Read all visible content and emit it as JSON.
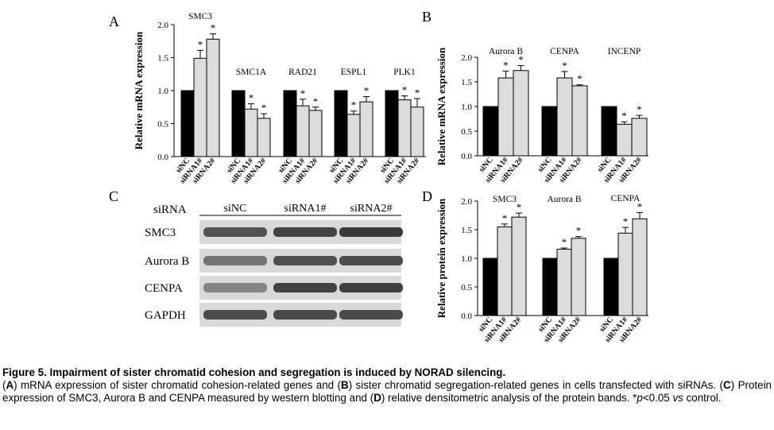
{
  "figure": {
    "panel_letters": [
      "A",
      "B",
      "C",
      "D"
    ],
    "significance_marker": "*",
    "colors": {
      "siNC": "#000000",
      "siRNA1#": "#dcdcdc",
      "siRNA2#": "#dcdcdc"
    }
  },
  "chart_data": [
    {
      "panel": "A",
      "type": "bar",
      "ylabel": "Relative mRNA expression",
      "ylim": [
        0,
        2.0
      ],
      "yticks": [
        "0.0",
        "0.5",
        "1.0",
        "1.5",
        "2.0"
      ],
      "conditions": [
        "siNC",
        "siRNA1#",
        "siRNA2#"
      ],
      "groups": [
        {
          "name": "SMC3",
          "values": [
            1.0,
            1.49,
            1.78
          ],
          "errors": [
            0,
            0.12,
            0.08
          ],
          "sig": [
            false,
            true,
            true
          ]
        },
        {
          "name": "SMC1A",
          "values": [
            1.0,
            0.72,
            0.58
          ],
          "errors": [
            0,
            0.08,
            0.07
          ],
          "sig": [
            false,
            true,
            true
          ]
        },
        {
          "name": "RAD21",
          "values": [
            1.0,
            0.77,
            0.7
          ],
          "errors": [
            0,
            0.1,
            0.05
          ],
          "sig": [
            false,
            true,
            true
          ]
        },
        {
          "name": "ESPL1",
          "values": [
            1.0,
            0.64,
            0.83
          ],
          "errors": [
            0,
            0.05,
            0.08
          ],
          "sig": [
            false,
            true,
            true
          ]
        },
        {
          "name": "PLK1",
          "values": [
            1.0,
            0.86,
            0.75
          ],
          "errors": [
            0,
            0.06,
            0.13
          ],
          "sig": [
            false,
            true,
            true
          ]
        }
      ]
    },
    {
      "panel": "B",
      "type": "bar",
      "ylabel": "Relative mRNA expression",
      "ylim": [
        0,
        2.0
      ],
      "yticks": [
        "0.0",
        "0.5",
        "1.0",
        "1.5",
        "2.0"
      ],
      "conditions": [
        "siNC",
        "siRNA1#",
        "siRNA2#"
      ],
      "groups": [
        {
          "name": "Aurora B",
          "values": [
            1.0,
            1.58,
            1.73
          ],
          "errors": [
            0,
            0.14,
            0.1
          ],
          "sig": [
            false,
            true,
            true
          ]
        },
        {
          "name": "CENPA",
          "values": [
            1.0,
            1.58,
            1.42
          ],
          "errors": [
            0,
            0.13,
            0.02
          ],
          "sig": [
            false,
            true,
            true
          ]
        },
        {
          "name": "INCENP",
          "values": [
            1.0,
            0.64,
            0.76
          ],
          "errors": [
            0,
            0.05,
            0.06
          ],
          "sig": [
            false,
            true,
            true
          ]
        }
      ]
    },
    {
      "panel": "D",
      "type": "bar",
      "ylabel": "Relative protein expression",
      "ylim": [
        0,
        2.0
      ],
      "yticks": [
        "0.0",
        "0.5",
        "1.0",
        "1.5",
        "2.0"
      ],
      "conditions": [
        "siNC",
        "siRNA1#",
        "siRNA2#"
      ],
      "groups": [
        {
          "name": "SMC3",
          "values": [
            1.0,
            1.55,
            1.72
          ],
          "errors": [
            0,
            0.05,
            0.07
          ],
          "sig": [
            false,
            true,
            true
          ]
        },
        {
          "name": "Aurora B",
          "values": [
            1.0,
            1.16,
            1.35
          ],
          "errors": [
            0,
            0.02,
            0.03
          ],
          "sig": [
            false,
            true,
            true
          ]
        },
        {
          "name": "CENPA",
          "values": [
            1.0,
            1.44,
            1.69
          ],
          "errors": [
            0,
            0.1,
            0.11
          ],
          "sig": [
            false,
            true,
            true
          ]
        }
      ]
    }
  ],
  "blot": {
    "panel": "C",
    "header_label": "siRNA",
    "lanes": [
      "siNC",
      "siRNA1#",
      "siRNA2#"
    ],
    "rows": [
      {
        "name": "SMC3",
        "intensity": [
          0.78,
          0.88,
          0.95
        ]
      },
      {
        "name": "Aurora B",
        "intensity": [
          0.55,
          0.8,
          0.82
        ]
      },
      {
        "name": "CENPA",
        "intensity": [
          0.45,
          0.88,
          0.9
        ]
      },
      {
        "name": "GAPDH",
        "intensity": [
          0.82,
          0.84,
          0.84
        ]
      }
    ]
  },
  "caption": {
    "title": "Figure 5. Impairment of sister chromatid cohesion and segregation is induced by NORAD silencing.",
    "parts": [
      {
        "t": "(",
        "b": false
      },
      {
        "t": "A",
        "b": true
      },
      {
        "t": ") mRNA expression of sister chromatid cohesion-related genes and (",
        "b": false
      },
      {
        "t": "B",
        "b": true
      },
      {
        "t": ") sister chromatid segregation-related genes in cells transfected with siRNAs. (",
        "b": false
      },
      {
        "t": "C",
        "b": true
      },
      {
        "t": ") Protein expression of SMC3, Aurora B and CENPA measured by western blotting and (",
        "b": false
      },
      {
        "t": "D",
        "b": true
      },
      {
        "t": ") relative densitometric analysis of the protein bands. *",
        "b": false
      },
      {
        "t": "p",
        "i": true
      },
      {
        "t": "<0.05 ",
        "b": false
      },
      {
        "t": "vs",
        "i": true
      },
      {
        "t": " control.",
        "b": false
      }
    ]
  }
}
